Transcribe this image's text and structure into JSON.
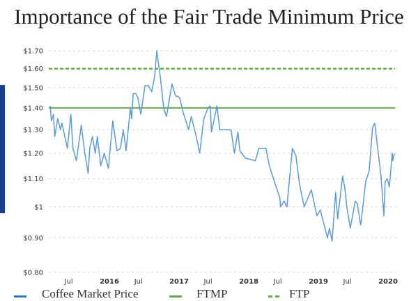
{
  "chart_data": {
    "type": "line",
    "title": "Importance of the Fair Trade Minimum Price",
    "xlabel": "",
    "ylabel": "",
    "y_scale": "log",
    "ylim": [
      0.8,
      1.7
    ],
    "xlim": [
      "2015-02-25",
      "2020-02-03"
    ],
    "grid": "horizontal dashed",
    "legend_placement": "bottom",
    "y_ticks": [
      {
        "value": 1.7,
        "label": "$1.70"
      },
      {
        "value": 1.6,
        "label": "$1.60"
      },
      {
        "value": 1.5,
        "label": "$1.50"
      },
      {
        "value": 1.4,
        "label": "$1.40"
      },
      {
        "value": 1.3,
        "label": "$1.30"
      },
      {
        "value": 1.2,
        "label": "$1.20"
      },
      {
        "value": 1.1,
        "label": "$1.10"
      },
      {
        "value": 1.0,
        "label": "$1"
      },
      {
        "value": 0.9,
        "label": "$0.90"
      },
      {
        "value": 0.8,
        "label": "$0.80"
      }
    ],
    "x_ticks": [
      {
        "date": "2015-07-01",
        "label": "Jul",
        "bold": false
      },
      {
        "date": "2016-01-01",
        "label": "2016",
        "bold": true
      },
      {
        "date": "2016-07-01",
        "label": "Jul",
        "bold": false
      },
      {
        "date": "2017-01-01",
        "label": "2017",
        "bold": true
      },
      {
        "date": "2017-07-01",
        "label": "Jul",
        "bold": false
      },
      {
        "date": "2018-01-01",
        "label": "2018",
        "bold": true
      },
      {
        "date": "2018-07-01",
        "label": "Jul",
        "bold": false
      },
      {
        "date": "2019-01-01",
        "label": "2019",
        "bold": true
      },
      {
        "date": "2019-07-01",
        "label": "Jul",
        "bold": false
      },
      {
        "date": "2020-01-01",
        "label": "2020",
        "bold": true
      }
    ],
    "series": [
      {
        "name": "Coffee Market Price",
        "color": "#5b9bd5",
        "style": "solid",
        "points": [
          [
            "2015-02-25",
            1.41
          ],
          [
            "2015-03-03",
            1.34
          ],
          [
            "2015-03-14",
            1.37
          ],
          [
            "2015-03-21",
            1.27
          ],
          [
            "2015-04-05",
            1.35
          ],
          [
            "2015-04-20",
            1.3
          ],
          [
            "2015-04-27",
            1.33
          ],
          [
            "2015-05-26",
            1.22
          ],
          [
            "2015-06-13",
            1.37
          ],
          [
            "2015-06-24",
            1.22
          ],
          [
            "2015-07-12",
            1.17
          ],
          [
            "2015-08-07",
            1.32
          ],
          [
            "2015-08-25",
            1.2
          ],
          [
            "2015-09-12",
            1.12
          ],
          [
            "2015-09-20",
            1.22
          ],
          [
            "2015-10-04",
            1.27
          ],
          [
            "2015-10-19",
            1.2
          ],
          [
            "2015-10-30",
            1.27
          ],
          [
            "2015-11-17",
            1.15
          ],
          [
            "2015-12-05",
            1.2
          ],
          [
            "2015-12-27",
            1.14
          ],
          [
            "2016-01-19",
            1.34
          ],
          [
            "2016-02-10",
            1.21
          ],
          [
            "2016-02-28",
            1.22
          ],
          [
            "2016-03-14",
            1.3
          ],
          [
            "2016-03-29",
            1.21
          ],
          [
            "2016-04-20",
            1.4
          ],
          [
            "2016-04-27",
            1.35
          ],
          [
            "2016-05-05",
            1.47
          ],
          [
            "2016-05-19",
            1.47
          ],
          [
            "2016-05-30",
            1.45
          ],
          [
            "2016-06-14",
            1.37
          ],
          [
            "2016-07-06",
            1.51
          ],
          [
            "2016-07-24",
            1.51
          ],
          [
            "2016-08-11",
            1.48
          ],
          [
            "2016-08-26",
            1.56
          ],
          [
            "2016-09-06",
            1.7
          ],
          [
            "2016-09-24",
            1.56
          ],
          [
            "2016-10-12",
            1.4
          ],
          [
            "2016-10-27",
            1.36
          ],
          [
            "2016-11-25",
            1.52
          ],
          [
            "2016-12-13",
            1.46
          ],
          [
            "2017-01-04",
            1.45
          ],
          [
            "2017-01-22",
            1.38
          ],
          [
            "2017-02-20",
            1.3
          ],
          [
            "2017-03-06",
            1.36
          ],
          [
            "2017-04-01",
            1.27
          ],
          [
            "2017-04-19",
            1.2
          ],
          [
            "2017-05-11",
            1.35
          ],
          [
            "2017-06-02",
            1.4
          ],
          [
            "2017-06-13",
            1.41
          ],
          [
            "2017-06-20",
            1.29
          ],
          [
            "2017-07-19",
            1.41
          ],
          [
            "2017-08-02",
            1.3
          ],
          [
            "2017-09-30",
            1.3
          ],
          [
            "2017-10-18",
            1.2
          ],
          [
            "2017-11-05",
            1.29
          ],
          [
            "2017-11-16",
            1.21
          ],
          [
            "2017-12-15",
            1.18
          ],
          [
            "2018-02-05",
            1.17
          ],
          [
            "2018-02-23",
            1.22
          ],
          [
            "2018-04-01",
            1.22
          ],
          [
            "2018-04-19",
            1.15
          ],
          [
            "2018-05-11",
            1.1
          ],
          [
            "2018-06-13",
            1.03
          ],
          [
            "2018-06-17",
            1.0
          ],
          [
            "2018-07-05",
            1.02
          ],
          [
            "2018-07-20",
            1.0
          ],
          [
            "2018-08-18",
            1.22
          ],
          [
            "2018-09-05",
            1.19
          ],
          [
            "2018-09-24",
            1.08
          ],
          [
            "2018-10-19",
            1.0
          ],
          [
            "2018-11-25",
            1.06
          ],
          [
            "2018-12-24",
            0.97
          ],
          [
            "2019-01-11",
            0.99
          ],
          [
            "2019-02-17",
            0.9
          ],
          [
            "2019-02-28",
            0.93
          ],
          [
            "2019-03-14",
            0.89
          ],
          [
            "2019-04-01",
            1.05
          ],
          [
            "2019-04-12",
            0.96
          ],
          [
            "2019-05-08",
            1.11
          ],
          [
            "2019-05-19",
            1.07
          ],
          [
            "2019-05-30",
            1.0
          ],
          [
            "2019-06-17",
            0.93
          ],
          [
            "2019-07-13",
            1.02
          ],
          [
            "2019-07-24",
            1.01
          ],
          [
            "2019-08-11",
            0.94
          ],
          [
            "2019-09-06",
            1.09
          ],
          [
            "2019-09-24",
            1.13
          ],
          [
            "2019-10-12",
            1.31
          ],
          [
            "2019-10-23",
            1.33
          ],
          [
            "2019-11-25",
            1.11
          ],
          [
            "2019-12-10",
            0.97
          ],
          [
            "2019-12-17",
            1.09
          ],
          [
            "2019-12-28",
            1.1
          ],
          [
            "2020-01-08",
            1.07
          ],
          [
            "2020-01-23",
            1.2
          ],
          [
            "2020-01-26",
            1.17
          ],
          [
            "2020-02-03",
            1.2
          ]
        ]
      },
      {
        "name": "FTMP",
        "color": "#6aa84f",
        "style": "solid",
        "value": 1.4
      },
      {
        "name": "FTP",
        "color": "#6aa84f",
        "style": "dashed",
        "value": 1.6
      }
    ]
  },
  "legend": {
    "items": [
      {
        "label": "Coffee Market Price",
        "color": "#2a7bc0"
      },
      {
        "label": "FTMP",
        "color": "#6aa84f"
      },
      {
        "label": "FTP",
        "color": "#6aa84f"
      }
    ]
  },
  "accent_bar_color": "#1a3f8f"
}
